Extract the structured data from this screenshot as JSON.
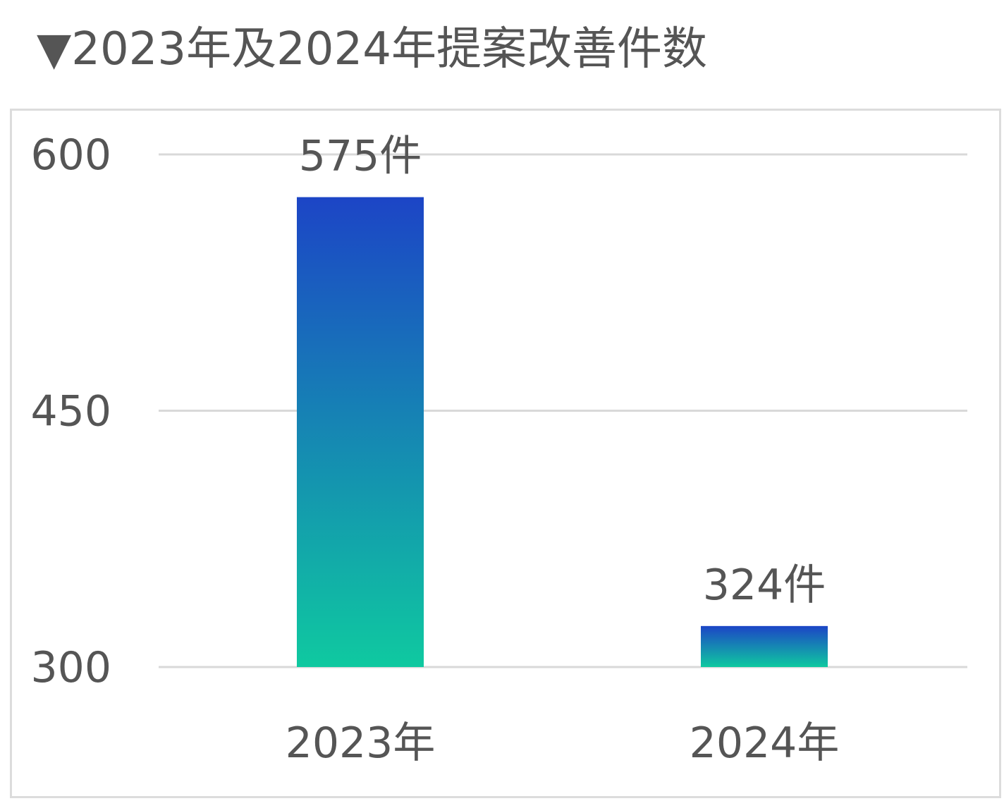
{
  "title": "▼2023年及2024年提案改善件数",
  "chart_data": {
    "type": "bar",
    "title": "▼2023年及2024年提案改善件数",
    "categories": [
      "2023年",
      "2024年"
    ],
    "values": [
      575,
      324
    ],
    "data_labels": [
      "575件",
      "324件"
    ],
    "yticks": [
      300,
      450,
      600
    ],
    "ytick_labels": [
      "300",
      "450",
      "600"
    ],
    "ylim": [
      300,
      600
    ],
    "xlabel": "",
    "ylabel": "",
    "grid": true,
    "legend": "none",
    "bar_gradient": {
      "top": "#1c45c6",
      "bottom": "#0fc9a0"
    },
    "gridline_color": "#d9d9d9",
    "text_color": "#555555"
  }
}
